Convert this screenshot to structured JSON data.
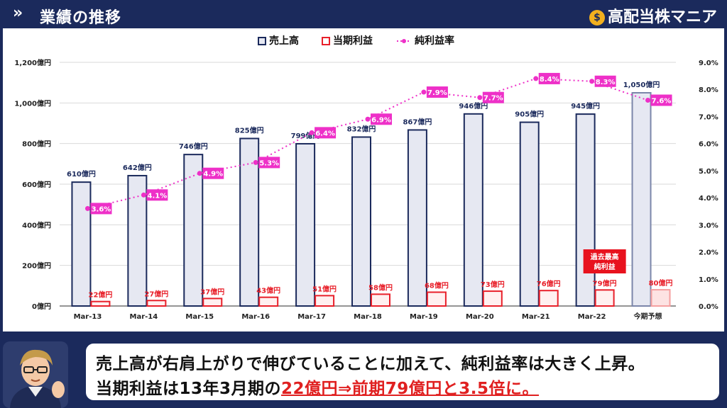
{
  "header": {
    "title": "業績の推移",
    "brand": "高配当株マニア",
    "brand_icon": "money-bag-icon",
    "nav_icon": "double-chevron-icon"
  },
  "chart_data": {
    "type": "bar",
    "categories": [
      "Mar-13",
      "Mar-14",
      "Mar-15",
      "Mar-16",
      "Mar-17",
      "Mar-18",
      "Mar-19",
      "Mar-20",
      "Mar-21",
      "Mar-22",
      "今期予想"
    ],
    "series": [
      {
        "name": "売上高",
        "type": "bar",
        "axis": "left",
        "values": [
          610,
          642,
          746,
          825,
          799,
          832,
          867,
          946,
          905,
          945,
          1050
        ],
        "labels": [
          "610億円",
          "642億円",
          "746億円",
          "825億円",
          "799億円",
          "832億円",
          "867億円",
          "946億円",
          "905億円",
          "945億円",
          "1,050億円"
        ]
      },
      {
        "name": "当期利益",
        "type": "bar",
        "axis": "left",
        "values": [
          22,
          27,
          37,
          43,
          51,
          58,
          68,
          73,
          76,
          79,
          80
        ],
        "labels": [
          "22億円",
          "27億円",
          "37億円",
          "43億円",
          "51億円",
          "58億円",
          "68億円",
          "73億円",
          "76億円",
          "79億円",
          "80億円"
        ]
      },
      {
        "name": "純利益率",
        "type": "line",
        "axis": "right",
        "values": [
          3.6,
          4.1,
          4.9,
          5.3,
          6.4,
          6.9,
          7.9,
          7.7,
          8.4,
          8.3,
          7.6
        ],
        "labels": [
          "3.6%",
          "4.1%",
          "4.9%",
          "5.3%",
          "6.4%",
          "6.9%",
          "7.9%",
          "7.7%",
          "8.4%",
          "8.3%",
          "7.6%"
        ]
      }
    ],
    "forecast_category": "今期予想",
    "y_left": {
      "min": 0,
      "max": 1200,
      "ticks": [
        "0億円",
        "200億円",
        "400億円",
        "600億円",
        "800億円",
        "1,000億円",
        "1,200億円"
      ]
    },
    "y_right": {
      "min": 0,
      "max": 9,
      "ticks": [
        "0.0%",
        "1.0%",
        "2.0%",
        "3.0%",
        "4.0%",
        "5.0%",
        "6.0%",
        "7.0%",
        "8.0%",
        "9.0%"
      ]
    },
    "grid": true,
    "legend_position": "top-center",
    "annotation": {
      "category": "Mar-22",
      "text": [
        "過去最高",
        "純利益"
      ]
    },
    "colors": {
      "revenue_fill": "#e6e8f2",
      "revenue_stroke": "#1b2a5c",
      "profit_fill": "#ffffff",
      "profit_stroke": "#e8202a",
      "margin": "#ee30c8",
      "annotation_bg": "#e8121e"
    }
  },
  "comment": {
    "line1": "売上高が右肩上がりで伸びていることに加えて、純利益率は大きく上昇。",
    "line2_plain": "当期利益は13年3月期の",
    "line2_highlight": "22億円⇒前期79億円と3.5倍に。"
  }
}
